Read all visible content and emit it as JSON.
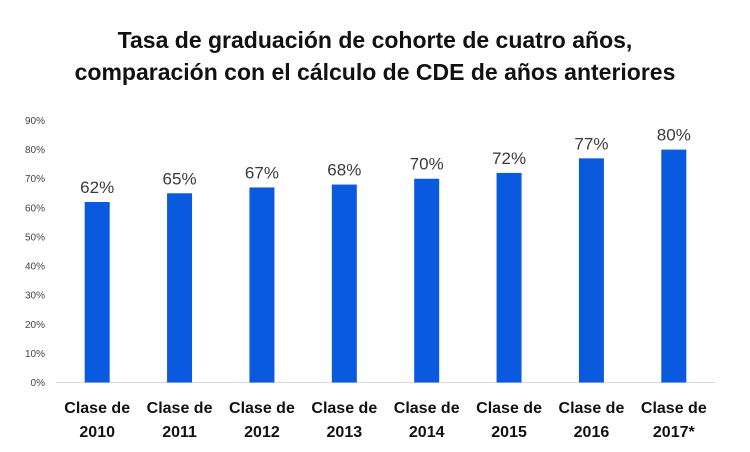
{
  "chart_data": {
    "type": "bar",
    "title_lines": [
      "Tasa de graduación de cohorte de cuatro años,",
      "comparación con el cálculo de CDE de años anteriores"
    ],
    "categories": [
      [
        "Clase de",
        "2010"
      ],
      [
        "Clase de",
        "2011"
      ],
      [
        "Clase de",
        "2012"
      ],
      [
        "Clase de",
        "2013"
      ],
      [
        "Clase de",
        "2014"
      ],
      [
        "Clase de",
        "2015"
      ],
      [
        "Clase de",
        "2016"
      ],
      [
        "Clase de",
        "2017*"
      ]
    ],
    "values": [
      62,
      65,
      67,
      68,
      70,
      72,
      77,
      80
    ],
    "data_labels": [
      "62%",
      "65%",
      "67%",
      "68%",
      "70%",
      "72%",
      "77%",
      "80%"
    ],
    "y_ticks": [
      "0%",
      "10%",
      "20%",
      "30%",
      "40%",
      "50%",
      "60%",
      "70%",
      "80%",
      "90%"
    ],
    "ylim": [
      0,
      90
    ],
    "xlabel": "",
    "ylabel": "",
    "grid": false,
    "bar_color": "#0a5ae0",
    "axis_color": "#d9d9d9"
  }
}
